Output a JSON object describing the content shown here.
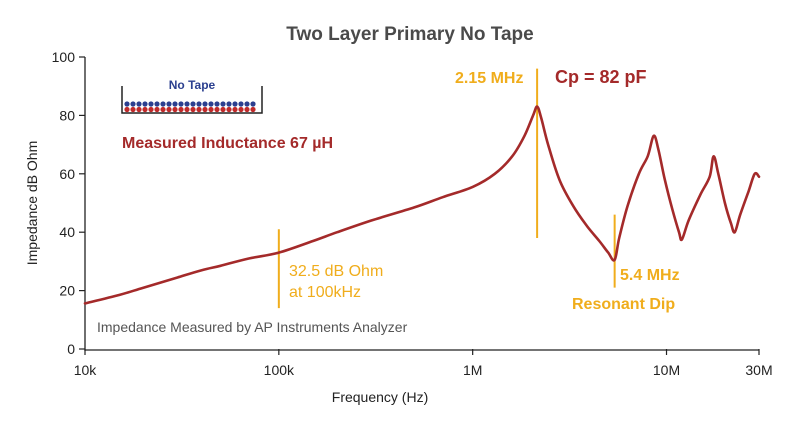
{
  "chart_data": {
    "type": "line",
    "title": "Two Layer Primary No Tape",
    "xlabel": "Frequency (Hz)",
    "ylabel": "Impedance dB Ohm",
    "x_scale": "log",
    "xlim": [
      10000,
      30000000
    ],
    "ylim": [
      0,
      100
    ],
    "x_ticks": [
      {
        "value": 10000,
        "label": "10k"
      },
      {
        "value": 100000,
        "label": "100k"
      },
      {
        "value": 1000000,
        "label": "1M"
      },
      {
        "value": 10000000,
        "label": "10M"
      },
      {
        "value": 30000000,
        "label": "30M"
      }
    ],
    "y_ticks": [
      0,
      20,
      40,
      60,
      80,
      100
    ],
    "grid": false,
    "colors": {
      "curve": "#a42a2a",
      "marker": "#f0ad1c",
      "axis": "#222222",
      "inset_blue": "#2b3f8f"
    },
    "series": [
      {
        "points": [
          [
            10000,
            15.6
          ],
          [
            15000,
            18.5
          ],
          [
            20000,
            21
          ],
          [
            30000,
            24.5
          ],
          [
            40000,
            27
          ],
          [
            50000,
            28.5
          ],
          [
            70000,
            31
          ],
          [
            100000,
            33
          ],
          [
            150000,
            37
          ],
          [
            200000,
            40
          ],
          [
            300000,
            44
          ],
          [
            500000,
            48.5
          ],
          [
            700000,
            52
          ],
          [
            1000000,
            55.5
          ],
          [
            1300000,
            60
          ],
          [
            1600000,
            66
          ],
          [
            1850000,
            73
          ],
          [
            2050000,
            80
          ],
          [
            2150000,
            83
          ],
          [
            2250000,
            79.5
          ],
          [
            2450000,
            70
          ],
          [
            2800000,
            58
          ],
          [
            3300000,
            49
          ],
          [
            3900000,
            42
          ],
          [
            4500000,
            37
          ],
          [
            5000000,
            33
          ],
          [
            5400000,
            30.5
          ],
          [
            5700000,
            38
          ],
          [
            6300000,
            49
          ],
          [
            7200000,
            60
          ],
          [
            8000000,
            66
          ],
          [
            8600000,
            73
          ],
          [
            9100000,
            68
          ],
          [
            9800000,
            58
          ],
          [
            10700000,
            48
          ],
          [
            11600000,
            40
          ],
          [
            12000000,
            37.5
          ],
          [
            13000000,
            44
          ],
          [
            15000000,
            53
          ],
          [
            16700000,
            59
          ],
          [
            17500000,
            66
          ],
          [
            18500000,
            60
          ],
          [
            20000000,
            50
          ],
          [
            21500000,
            43
          ],
          [
            22500000,
            40
          ],
          [
            24000000,
            46
          ],
          [
            26500000,
            54
          ],
          [
            28500000,
            60
          ],
          [
            30000000,
            59
          ]
        ]
      }
    ],
    "markers": [
      {
        "x": 100000,
        "y_range": [
          14,
          41
        ]
      },
      {
        "x": 2150000,
        "y_range": [
          38,
          96
        ]
      },
      {
        "x": 5400000,
        "y_range": [
          21,
          46
        ]
      }
    ],
    "annotations": {
      "peak_freq": "2.15 MHz",
      "cp_value": "Cp = 82 pF",
      "inductance": "Measured Inductance 67 µH",
      "point_value": "32.5 dB Ohm",
      "point_freq": "at 100kHz",
      "dip_freq": "5.4 MHz",
      "dip_label": "Resonant Dip",
      "source_note": "Impedance Measured by AP Instruments Analyzer",
      "inset_label": "No Tape"
    }
  }
}
